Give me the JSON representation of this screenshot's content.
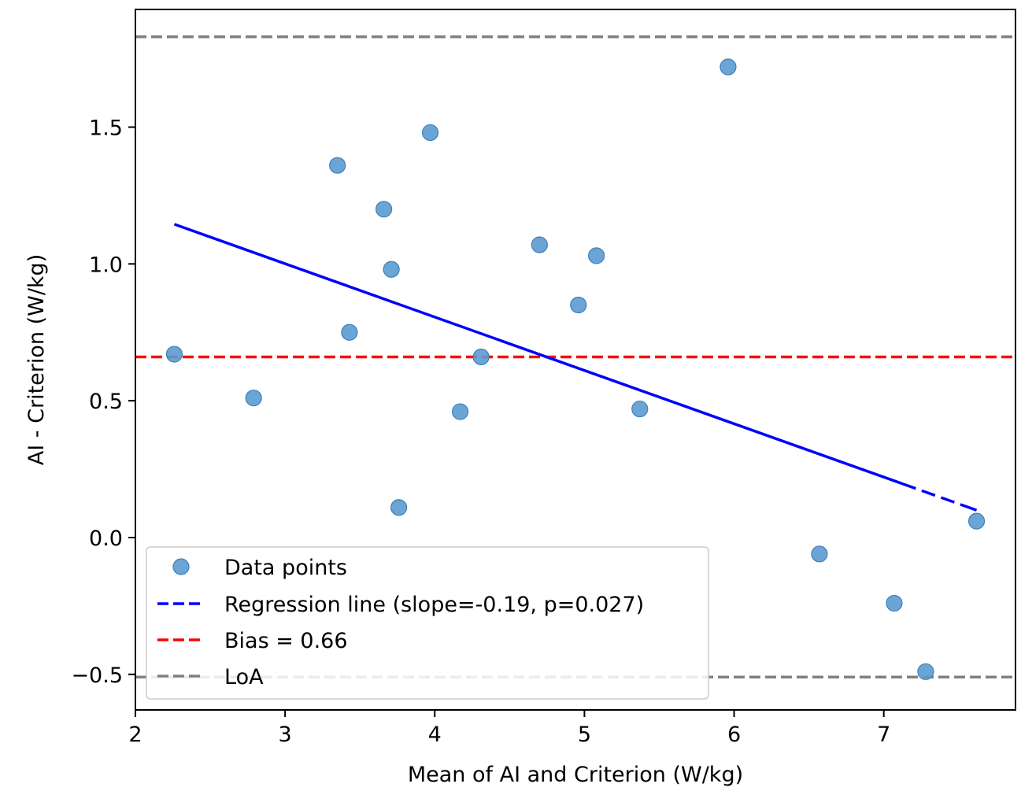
{
  "chart_data": {
    "type": "scatter",
    "title": "",
    "xlabel": "Mean of AI and Criterion (W/kg)",
    "ylabel": "AI - Criterion (W/kg)",
    "xlim": [
      2.0,
      7.88
    ],
    "ylim": [
      -0.63,
      1.93
    ],
    "xticks": [
      2,
      3,
      4,
      5,
      6,
      7
    ],
    "yticks": [
      -0.5,
      0.0,
      0.5,
      1.0,
      1.5
    ],
    "xtick_labels": [
      "2",
      "3",
      "4",
      "5",
      "6",
      "7"
    ],
    "ytick_labels": [
      "−0.5",
      "0.0",
      "0.5",
      "1.0",
      "1.5"
    ],
    "grid": false,
    "legend_position": "lower-left",
    "series": [
      {
        "name": "Data points",
        "kind": "scatter",
        "color": "#5b9bd0",
        "x": [
          2.26,
          2.79,
          3.35,
          3.43,
          3.66,
          3.71,
          3.76,
          3.97,
          4.17,
          4.31,
          4.7,
          4.96,
          5.08,
          5.37,
          5.96,
          6.57,
          7.07,
          7.28,
          7.62
        ],
        "y": [
          0.67,
          0.51,
          1.36,
          0.75,
          1.2,
          0.98,
          0.11,
          1.48,
          0.46,
          0.66,
          1.07,
          0.85,
          1.03,
          0.47,
          1.72,
          -0.06,
          -0.24,
          -0.49,
          0.06
        ]
      },
      {
        "name": "Regression line (slope=-0.19, p=0.027)",
        "kind": "line",
        "style": "dashed",
        "color": "#0000ff",
        "x": [
          2.26,
          7.62
        ],
        "y": [
          1.145,
          0.1
        ]
      },
      {
        "name": "Bias = 0.66",
        "kind": "hline",
        "style": "dashed",
        "color": "#ff0000",
        "y": 0.66
      },
      {
        "name": "LoA",
        "kind": "hline",
        "style": "dashed",
        "color": "#808080",
        "y": [
          -0.51,
          1.83
        ]
      }
    ]
  }
}
